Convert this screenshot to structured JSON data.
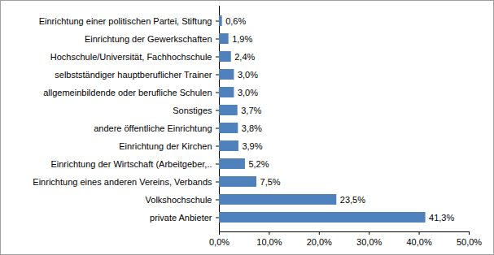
{
  "chart_data": {
    "type": "bar",
    "orientation": "horizontal",
    "categories": [
      "Einrichtung einer politischen Partei, Stiftung",
      "Einrichtung der Gewerkschaften",
      "Hochschule/Universität, Fachhochschule",
      "selbstständiger hauptberuflicher Trainer",
      "allgemeinbildende oder berufliche Schulen",
      "Sonstiges",
      "andere öffentliche Einrichtung",
      "Einrichtung der Kirchen",
      "Einrichtung der Wirtschaft (Arbeitgeber,..",
      "Einrichtung eines anderen Vereins, Verbands",
      "Volkshochschule",
      "private Anbieter"
    ],
    "values": [
      0.6,
      1.9,
      2.4,
      3.0,
      3.0,
      3.7,
      3.8,
      3.9,
      5.2,
      7.5,
      23.5,
      41.3
    ],
    "value_labels": [
      "0,6%",
      "1,9%",
      "2,4%",
      "3,0%",
      "3,0%",
      "3,7%",
      "3,8%",
      "3,9%",
      "5,2%",
      "7,5%",
      "23,5%",
      "41,3%"
    ],
    "color": "#4f81bd",
    "xlim": [
      0,
      50
    ],
    "xticks": [
      {
        "value": 0,
        "label": "0,0%"
      },
      {
        "value": 10,
        "label": "10,0%"
      },
      {
        "value": 20,
        "label": "20,0%"
      },
      {
        "value": 30,
        "label": "30,0%"
      },
      {
        "value": 40,
        "label": "40,0%"
      },
      {
        "value": 50,
        "label": "50,0%"
      }
    ],
    "data_labels": true,
    "grid": false
  }
}
